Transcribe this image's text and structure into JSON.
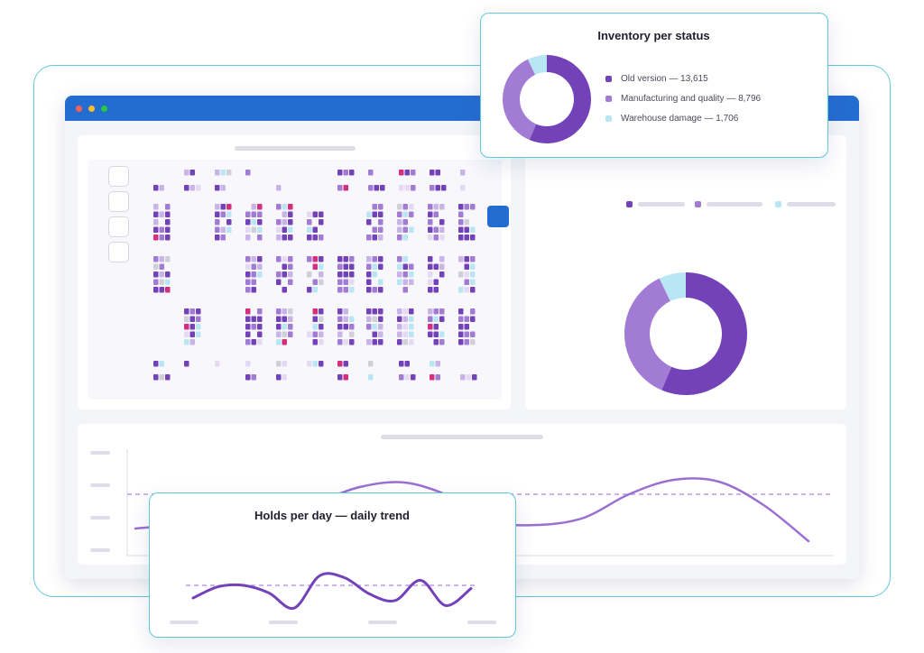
{
  "colors": {
    "accent_blue": "#246dd0",
    "frame_cyan": "#5ec9dd",
    "old_version": "#7442b8",
    "manufacturing_quality": "#a27bd4",
    "warehouse_damage": "#b9e6f4",
    "highlight_pink": "#d42f7e",
    "trend_line": "#9b6fd2",
    "trend_line_dark": "#7442b8"
  },
  "window": {
    "controls": [
      "close-dot",
      "minimize-dot",
      "maximize-dot"
    ]
  },
  "inventory_popup": {
    "title": "Inventory per status",
    "legend": [
      {
        "label": "Old version — 13,615",
        "color": "#7442b8"
      },
      {
        "label": "Manufacturing and quality — 8,796",
        "color": "#a27bd4"
      },
      {
        "label": "Warehouse damage — 1,706",
        "color": "#b9e6f4"
      }
    ]
  },
  "holds_popup": {
    "title": "Holds per day — daily trend"
  },
  "chart_data": [
    {
      "type": "pie",
      "categories": [
        "Old version",
        "Manufacturing and quality",
        "Warehouse damage"
      ],
      "values": [
        13615,
        8796,
        1706
      ],
      "title": "Inventory per status"
    },
    {
      "type": "line",
      "title": "Holds per day — daily trend",
      "series": [
        {
          "values": [
            20,
            38,
            40,
            28,
            4,
            55,
            52,
            26,
            16,
            48,
            8,
            35
          ]
        }
      ],
      "reference_line": 40,
      "grid": false
    },
    {
      "type": "line",
      "series": [
        {
          "values": [
            24,
            28,
            30,
            34,
            52,
            70,
            75,
            60,
            32,
            28,
            36,
            62,
            78,
            76,
            50,
            10
          ]
        }
      ],
      "reference_line": 62,
      "grid": false
    }
  ]
}
